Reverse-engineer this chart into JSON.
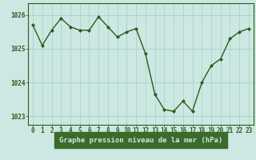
{
  "x": [
    0,
    1,
    2,
    3,
    4,
    5,
    6,
    7,
    8,
    9,
    10,
    11,
    12,
    13,
    14,
    15,
    16,
    17,
    18,
    19,
    20,
    21,
    22,
    23
  ],
  "y": [
    1025.7,
    1025.1,
    1025.55,
    1025.9,
    1025.65,
    1025.55,
    1025.55,
    1025.95,
    1025.65,
    1025.35,
    1025.5,
    1025.6,
    1024.85,
    1023.65,
    1023.2,
    1023.15,
    1023.45,
    1023.15,
    1024.0,
    1024.5,
    1024.7,
    1025.3,
    1025.5,
    1025.6
  ],
  "ylim": [
    1022.75,
    1026.35
  ],
  "yticks": [
    1023,
    1024,
    1025,
    1026
  ],
  "xticks": [
    0,
    1,
    2,
    3,
    4,
    5,
    6,
    7,
    8,
    9,
    10,
    11,
    12,
    13,
    14,
    15,
    16,
    17,
    18,
    19,
    20,
    21,
    22,
    23
  ],
  "xlabel": "Graphe pression niveau de la mer (hPa)",
  "line_color": "#2d5a1b",
  "marker": "D",
  "marker_size": 2.0,
  "background_color": "#cde8e2",
  "grid_color": "#9ecec5",
  "axis_color": "#2d5a1b",
  "tick_label_color": "#2d5a1b",
  "xlabel_color": "#2d5a1b",
  "xlabel_bg_color": "#3a6b2a",
  "xlabel_text_color": "#cde8e2",
  "xlabel_fontsize": 6.5,
  "tick_fontsize": 5.5,
  "line_width": 1.0
}
